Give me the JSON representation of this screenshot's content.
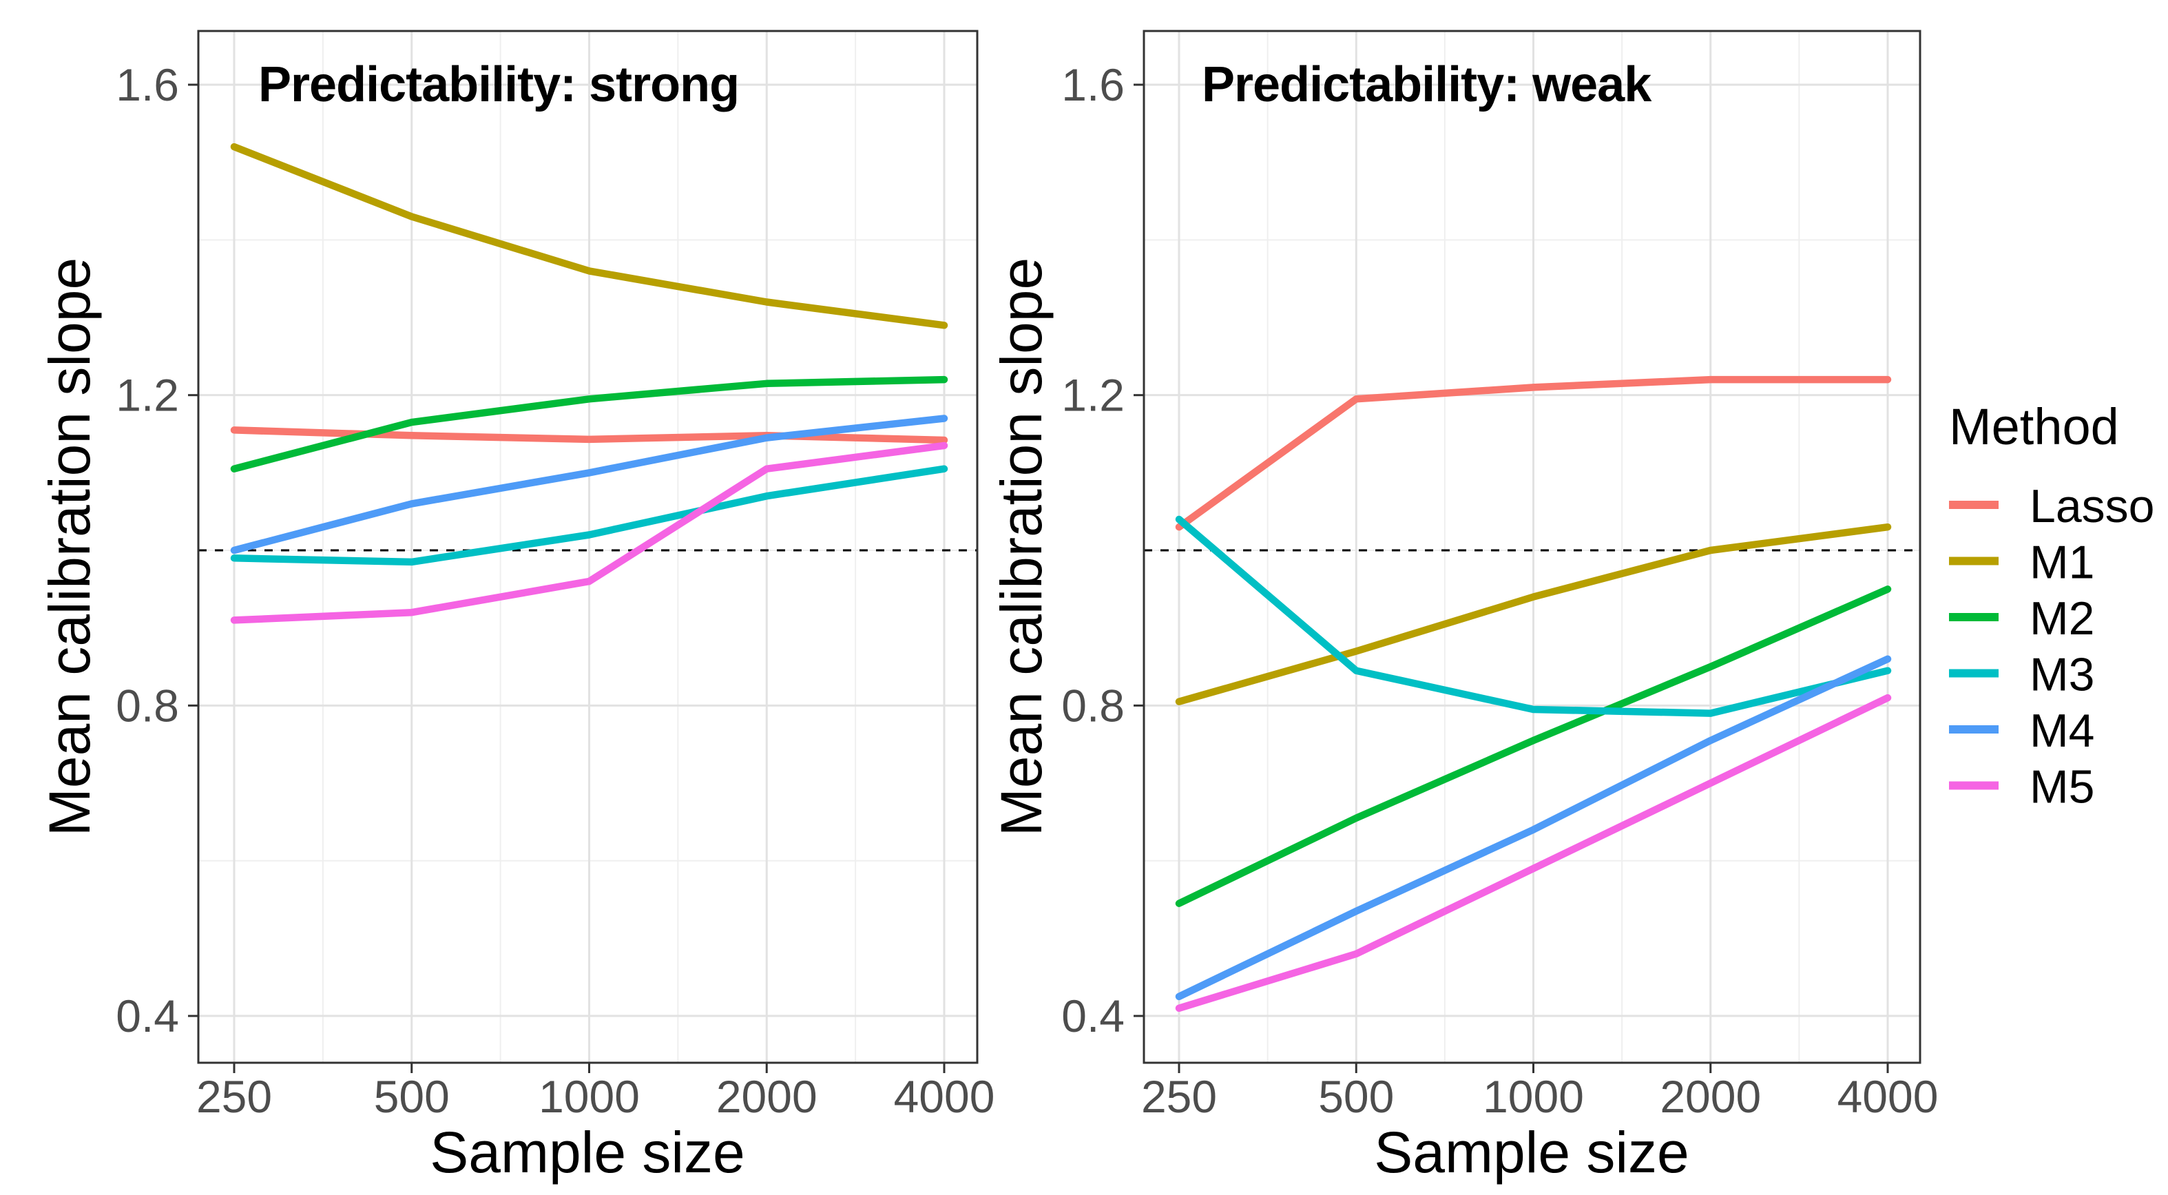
{
  "figure": {
    "kind": "faceted-line-chart",
    "background": "#ffffff",
    "panel_border_color": "#333333",
    "major_grid_color": "#e2e2e2",
    "minor_grid_color": "#efefef",
    "tick_color": "#333333",
    "tick_label_color": "#4d4d4d",
    "reference_line": {
      "y": 1.0,
      "style": "dashed",
      "color": "#000000"
    }
  },
  "chart_data": [
    {
      "type": "line",
      "title": "Predictability: strong",
      "xlabel": "Sample size",
      "ylabel": "Mean calibration slope",
      "x_scale": "log2",
      "x": [
        250,
        500,
        1000,
        2000,
        4000
      ],
      "x_tick_labels": [
        "250",
        "500",
        "1000",
        "2000",
        "4000"
      ],
      "y_ticks": [
        0.4,
        0.8,
        1.2,
        1.6
      ],
      "y_tick_labels": [
        "0.4",
        "0.8",
        "1.2",
        "1.6"
      ],
      "y_minor_ticks": [
        0.6,
        1.0,
        1.4
      ],
      "x_minor_ticks": [
        353.55,
        707.11,
        1414.21,
        2828.43
      ],
      "ylim": [
        0.34,
        1.67
      ],
      "reference_line_y": 1.0,
      "series": [
        {
          "name": "Lasso",
          "values": [
            1.155,
            1.148,
            1.143,
            1.148,
            1.142
          ]
        },
        {
          "name": "M1",
          "values": [
            1.52,
            1.43,
            1.36,
            1.32,
            1.29
          ]
        },
        {
          "name": "M2",
          "values": [
            1.105,
            1.165,
            1.195,
            1.215,
            1.22
          ]
        },
        {
          "name": "M3",
          "values": [
            0.99,
            0.985,
            1.02,
            1.07,
            1.105
          ]
        },
        {
          "name": "M4",
          "values": [
            1.0,
            1.06,
            1.1,
            1.145,
            1.17
          ]
        },
        {
          "name": "M5",
          "values": [
            0.91,
            0.92,
            0.96,
            1.105,
            1.135
          ]
        }
      ]
    },
    {
      "type": "line",
      "title": "Predictability: weak",
      "xlabel": "Sample size",
      "ylabel": "Mean calibration slope",
      "x_scale": "log2",
      "x": [
        250,
        500,
        1000,
        2000,
        4000
      ],
      "x_tick_labels": [
        "250",
        "500",
        "1000",
        "2000",
        "4000"
      ],
      "y_ticks": [
        0.4,
        0.8,
        1.2,
        1.6
      ],
      "y_tick_labels": [
        "0.4",
        "0.8",
        "1.2",
        "1.6"
      ],
      "y_minor_ticks": [
        0.6,
        1.0,
        1.4
      ],
      "x_minor_ticks": [
        353.55,
        707.11,
        1414.21,
        2828.43
      ],
      "ylim": [
        0.34,
        1.67
      ],
      "reference_line_y": 1.0,
      "series": [
        {
          "name": "Lasso",
          "values": [
            1.03,
            1.195,
            1.21,
            1.22,
            1.22
          ]
        },
        {
          "name": "M1",
          "values": [
            0.805,
            0.87,
            0.94,
            1.0,
            1.03
          ]
        },
        {
          "name": "M2",
          "values": [
            0.545,
            0.655,
            0.755,
            0.85,
            0.95
          ]
        },
        {
          "name": "M3",
          "values": [
            1.04,
            0.845,
            0.795,
            0.79,
            0.845
          ]
        },
        {
          "name": "M4",
          "values": [
            0.425,
            0.535,
            0.64,
            0.755,
            0.86
          ]
        },
        {
          "name": "M5",
          "values": [
            0.41,
            0.48,
            0.59,
            0.7,
            0.81
          ]
        }
      ]
    }
  ],
  "legend": {
    "title": "Method",
    "position": "right",
    "entries": [
      {
        "label": "Lasso",
        "color": "#F8766D"
      },
      {
        "label": "M1",
        "color": "#B79F00"
      },
      {
        "label": "M2",
        "color": "#00BA38"
      },
      {
        "label": "M3",
        "color": "#00BFC4"
      },
      {
        "label": "M4",
        "color": "#4E9BF7"
      },
      {
        "label": "M5",
        "color": "#F564E3"
      }
    ]
  }
}
